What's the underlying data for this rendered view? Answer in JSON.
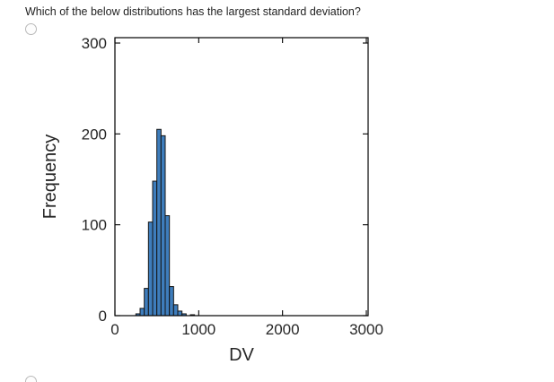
{
  "question": {
    "text": "Which of the below distributions has the largest standard deviation?"
  },
  "options": [
    {
      "id": "option-1",
      "label": ""
    },
    {
      "id": "option-2",
      "label": ""
    }
  ],
  "chart_data": {
    "type": "bar",
    "subtype": "histogram",
    "title": "",
    "xlabel": "DV",
    "ylabel": "Frequency",
    "xlim": [
      0,
      3020
    ],
    "ylim": [
      0,
      306
    ],
    "x_ticks": [
      0,
      1000,
      2000,
      3000
    ],
    "y_ticks": [
      0,
      100,
      200,
      300
    ],
    "grid": false,
    "legend": "none",
    "bin_start": 250,
    "bin_width": 50,
    "frequencies": [
      2,
      8,
      30,
      103,
      148,
      205,
      198,
      110,
      32,
      12,
      5,
      2,
      0,
      1
    ],
    "bar_fill": "#3E7DBC",
    "bar_stroke": "#141414",
    "axis_color": "#000000"
  }
}
